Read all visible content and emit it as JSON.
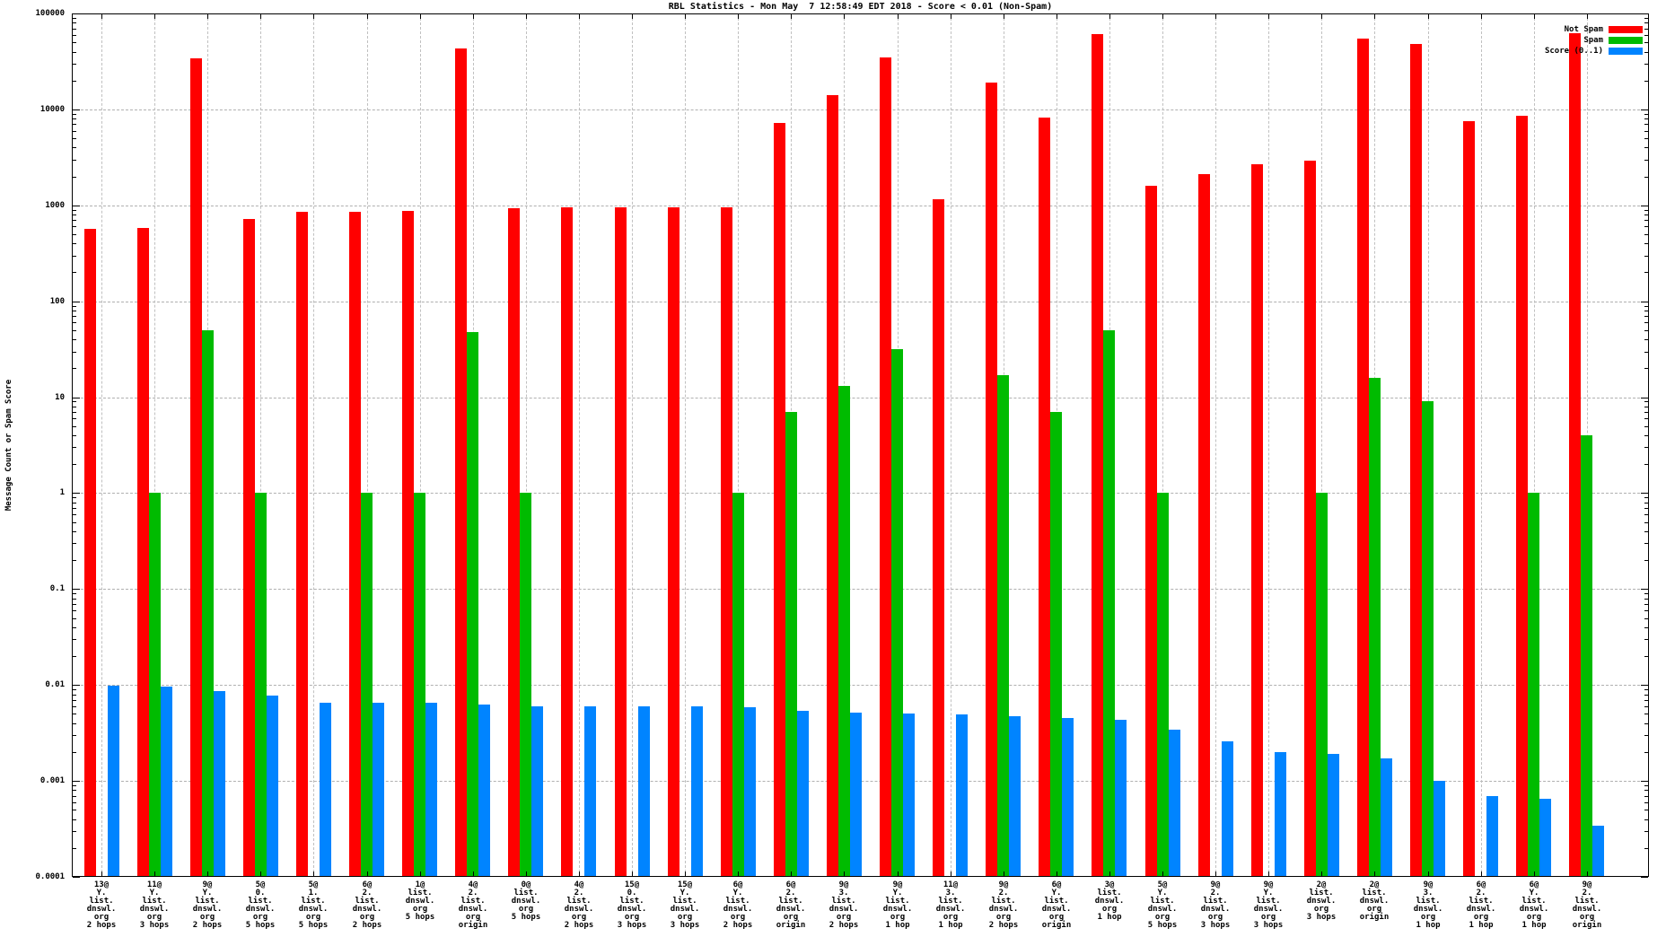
{
  "title": "RBL Statistics - Mon May  7 12:58:49 EDT 2018 - Score < 0.01 (Non-Spam)",
  "y_axis": {
    "label": "Message Count or Spam Score",
    "tick_labels": [
      "100000",
      "10000",
      "1000",
      "100",
      "10",
      "1",
      "0.1",
      "0.01",
      "0.001",
      "0.0001"
    ]
  },
  "legend": {
    "items": [
      {
        "label": "Not Spam",
        "color": "#ff0000"
      },
      {
        "label": "Spam",
        "color": "#00bb00"
      },
      {
        "label": "Score (0..1)",
        "color": "#0084ff"
      }
    ]
  },
  "chart_data": {
    "type": "bar",
    "scale": "log",
    "ylim": [
      0.0001,
      100000
    ],
    "ylabel": "Message Count or Spam Score",
    "grid": true,
    "legend_position": "top-right",
    "categories": [
      [
        "13@",
        "Y.",
        "list.",
        "dnswl.",
        "org",
        "2 hops"
      ],
      [
        "11@",
        "Y.",
        "list.",
        "dnswl.",
        "org",
        "3 hops"
      ],
      [
        "9@",
        "Y.",
        "list.",
        "dnswl.",
        "org",
        "2 hops"
      ],
      [
        "5@",
        "0.",
        "list.",
        "dnswl.",
        "org",
        "5 hops"
      ],
      [
        "5@",
        "1.",
        "list.",
        "dnswl.",
        "org",
        "5 hops"
      ],
      [
        "6@",
        "2.",
        "list.",
        "dnswl.",
        "org",
        "2 hops"
      ],
      [
        "1@",
        "list.",
        "dnswl.",
        "org",
        "5 hops"
      ],
      [
        "4@",
        "2.",
        "list.",
        "dnswl.",
        "org",
        "origin"
      ],
      [
        "0@",
        "list.",
        "dnswl.",
        "org",
        "5 hops"
      ],
      [
        "4@",
        "2.",
        "list.",
        "dnswl.",
        "org",
        "2 hops"
      ],
      [
        "15@",
        "0.",
        "list.",
        "dnswl.",
        "org",
        "3 hops"
      ],
      [
        "15@",
        "Y.",
        "list.",
        "dnswl.",
        "org",
        "3 hops"
      ],
      [
        "6@",
        "Y.",
        "list.",
        "dnswl.",
        "org",
        "2 hops"
      ],
      [
        "6@",
        "2.",
        "list.",
        "dnswl.",
        "org",
        "origin"
      ],
      [
        "9@",
        "3.",
        "list.",
        "dnswl.",
        "org",
        "2 hops"
      ],
      [
        "9@",
        "Y.",
        "list.",
        "dnswl.",
        "org",
        "1 hop"
      ],
      [
        "11@",
        "3.",
        "list.",
        "dnswl.",
        "org",
        "1 hop"
      ],
      [
        "9@",
        "2.",
        "list.",
        "dnswl.",
        "org",
        "2 hops"
      ],
      [
        "6@",
        "Y.",
        "list.",
        "dnswl.",
        "org",
        "origin"
      ],
      [
        "3@",
        "list.",
        "dnswl.",
        "org",
        "1 hop"
      ],
      [
        "5@",
        "Y.",
        "list.",
        "dnswl.",
        "org",
        "5 hops"
      ],
      [
        "9@",
        "2.",
        "list.",
        "dnswl.",
        "org",
        "3 hops"
      ],
      [
        "9@",
        "Y.",
        "list.",
        "dnswl.",
        "org",
        "3 hops"
      ],
      [
        "2@",
        "list.",
        "dnswl.",
        "org",
        "3 hops"
      ],
      [
        "2@",
        "list.",
        "dnswl.",
        "org",
        "origin"
      ],
      [
        "9@",
        "3.",
        "list.",
        "dnswl.",
        "org",
        "1 hop"
      ],
      [
        "6@",
        "2.",
        "list.",
        "dnswl.",
        "org",
        "1 hop"
      ],
      [
        "6@",
        "Y.",
        "list.",
        "dnswl.",
        "org",
        "1 hop"
      ],
      [
        "9@",
        "2.",
        "list.",
        "dnswl.",
        "org",
        "origin"
      ]
    ],
    "series": [
      {
        "name": "Not Spam",
        "color": "#ff0000",
        "values": [
          570,
          580,
          34000,
          720,
          850,
          850,
          880,
          43000,
          940,
          945,
          950,
          950,
          950,
          7200,
          14000,
          35000,
          1150,
          19000,
          8300,
          61000,
          1600,
          2100,
          2700,
          2950,
          55000,
          48000,
          7600,
          8500,
          62000
        ]
      },
      {
        "name": "Spam",
        "color": "#00bb00",
        "values": [
          null,
          1,
          50,
          1,
          null,
          1,
          1,
          48,
          1,
          null,
          null,
          null,
          1,
          7,
          13,
          32,
          null,
          17,
          7,
          50,
          1,
          null,
          null,
          1,
          16,
          9,
          null,
          1,
          4
        ]
      },
      {
        "name": "Score (0..1)",
        "color": "#0084ff",
        "values": [
          0.0099,
          0.0096,
          0.0086,
          0.0078,
          0.0066,
          0.0066,
          0.0065,
          0.0063,
          0.006,
          0.006,
          0.006,
          0.006,
          0.0059,
          0.0054,
          0.0051,
          0.005,
          0.0049,
          0.0047,
          0.0045,
          0.0043,
          0.0034,
          0.0026,
          0.002,
          0.0019,
          0.0017,
          0.001,
          0.0007,
          0.00065,
          0.00034
        ]
      }
    ]
  }
}
